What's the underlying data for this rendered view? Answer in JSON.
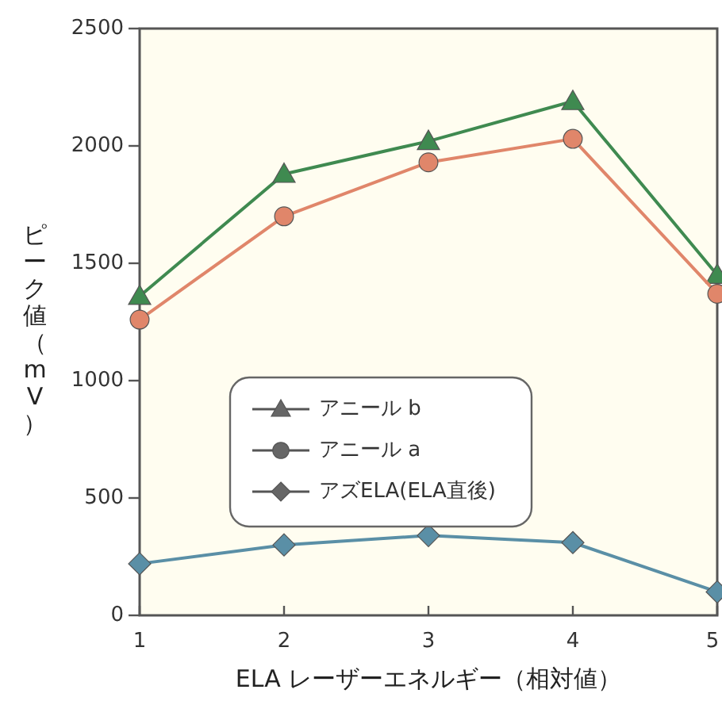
{
  "chart_data": {
    "type": "line",
    "xlabel": "ELA レーザーエネルギー（相対値）",
    "ylabel": "ピーク値（mV）",
    "x": [
      1,
      2,
      3,
      4,
      5
    ],
    "xlim": [
      1,
      5
    ],
    "xticks": [
      1,
      2,
      3,
      4,
      5
    ],
    "ylim": [
      0,
      2500
    ],
    "yticks": [
      0,
      500,
      1000,
      1500,
      2000,
      2500
    ],
    "grid": false,
    "legend": "center",
    "line_style": "solid",
    "series": [
      {
        "name": "アニール b",
        "color": "#3f8a50",
        "marker": "triangle",
        "values": [
          1360,
          1880,
          2020,
          2190,
          1450
        ]
      },
      {
        "name": "アニール a",
        "color": "#e0866a",
        "marker": "circle",
        "values": [
          1260,
          1700,
          1930,
          2030,
          1370
        ]
      },
      {
        "name": "アズELA(ELA直後)",
        "color": "#5a8fa6",
        "marker": "diamond",
        "values": [
          220,
          300,
          340,
          310,
          100
        ]
      }
    ]
  }
}
